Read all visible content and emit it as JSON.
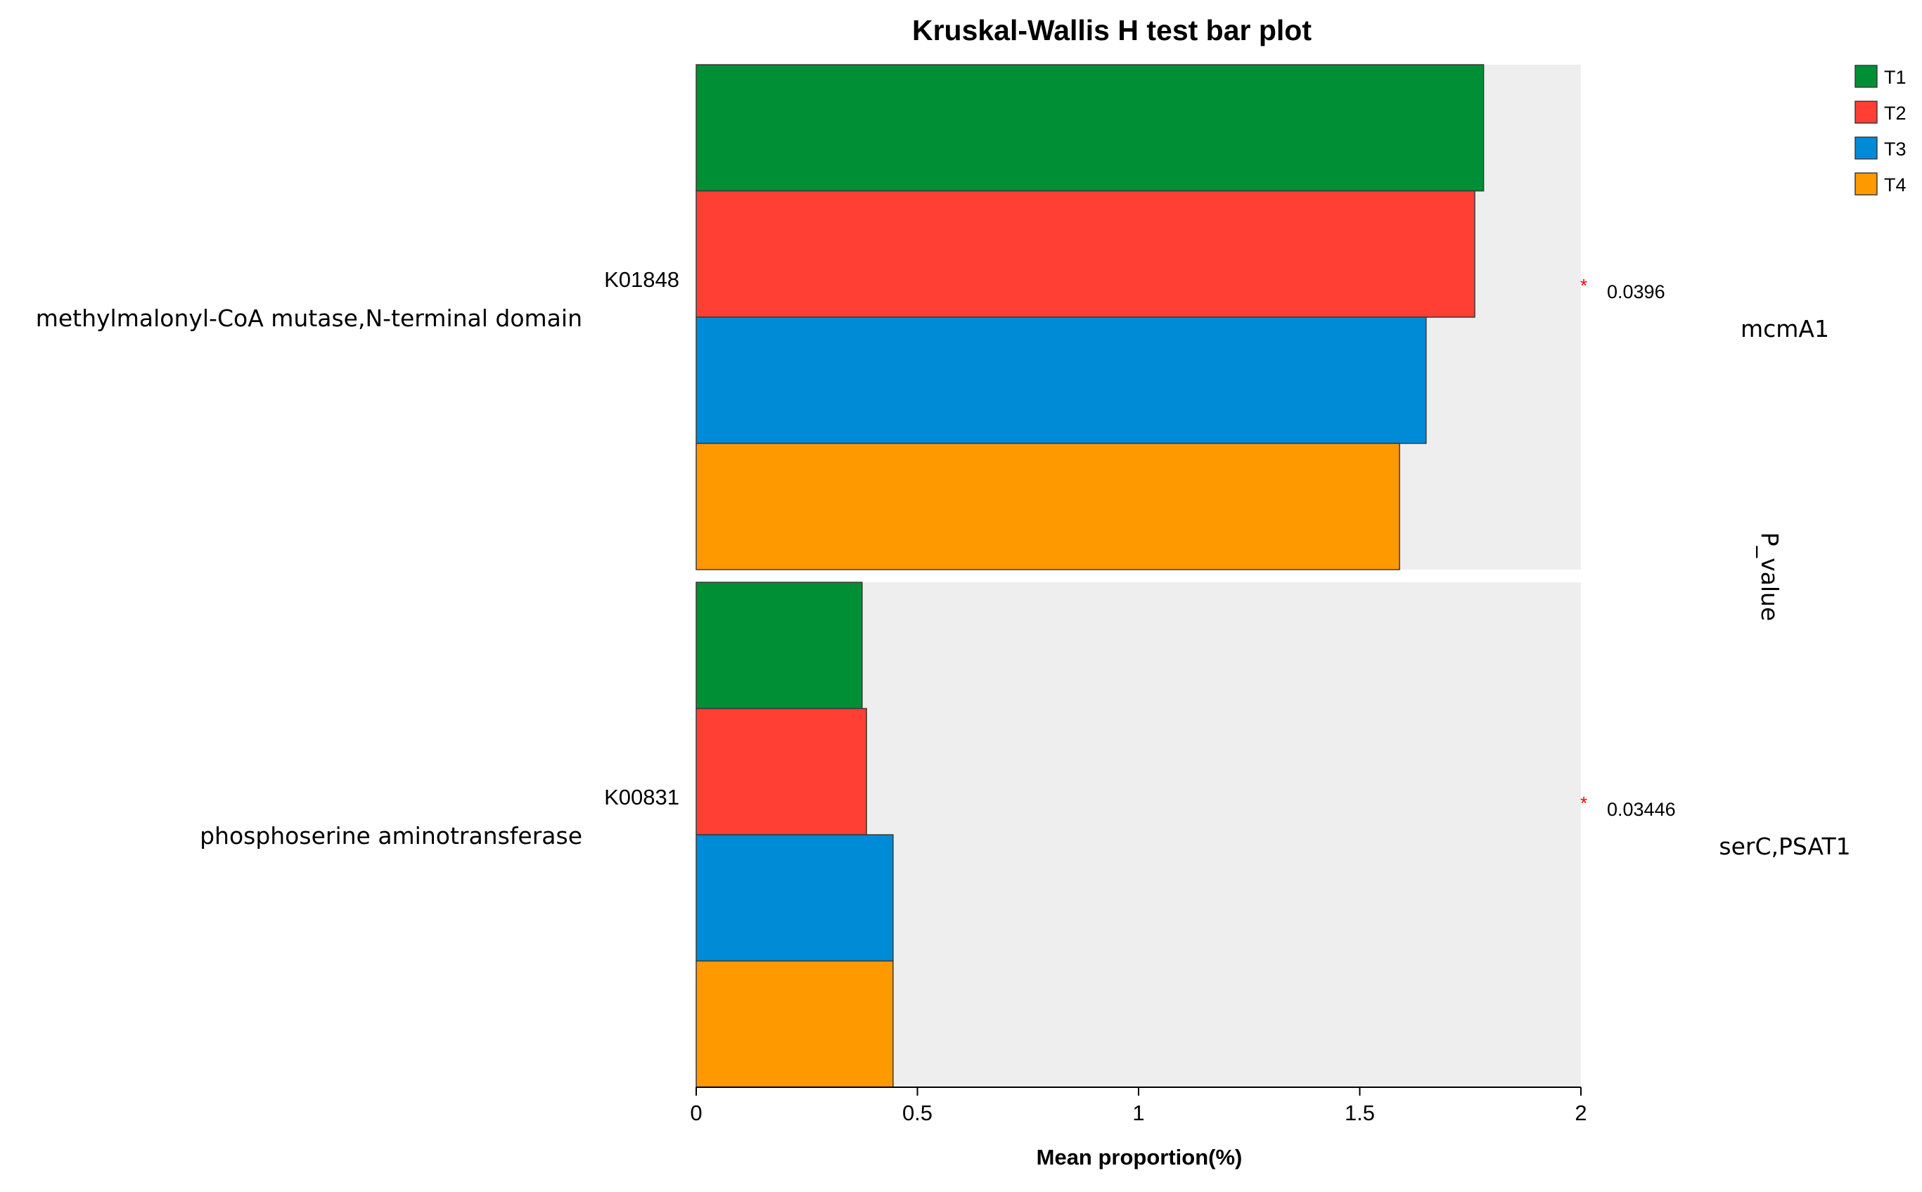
{
  "chart_data": {
    "type": "bar",
    "title": "Kruskal-Wallis H test bar plot",
    "xlabel": "Mean proportion(%)",
    "right_axis_title": "P_value",
    "xlim": [
      0,
      2
    ],
    "xticks": [
      "0",
      "0.5",
      "1",
      "1.5",
      "2"
    ],
    "xtick_values": [
      0,
      0.5,
      1,
      1.5,
      2
    ],
    "series": [
      {
        "name": "T1",
        "color": "#008f34"
      },
      {
        "name": "T2",
        "color": "#ff3f33"
      },
      {
        "name": "T3",
        "color": "#008bd6"
      },
      {
        "name": "T4",
        "color": "#ff9900"
      }
    ],
    "legend_position": "top-right",
    "panel_background": "#eeeeee",
    "groups": [
      {
        "id": "K01848",
        "description": "methylmalonyl-CoA mutase,N-terminal domain",
        "gene": "mcmA1",
        "significance": "*",
        "p_value": "0.0396",
        "values": [
          1.78,
          1.76,
          1.65,
          1.59
        ]
      },
      {
        "id": "K00831",
        "description": "phosphoserine aminotransferase",
        "gene": "serC,PSAT1",
        "significance": "*",
        "p_value": "0.03446",
        "values": [
          0.375,
          0.385,
          0.445,
          0.445
        ]
      }
    ]
  }
}
